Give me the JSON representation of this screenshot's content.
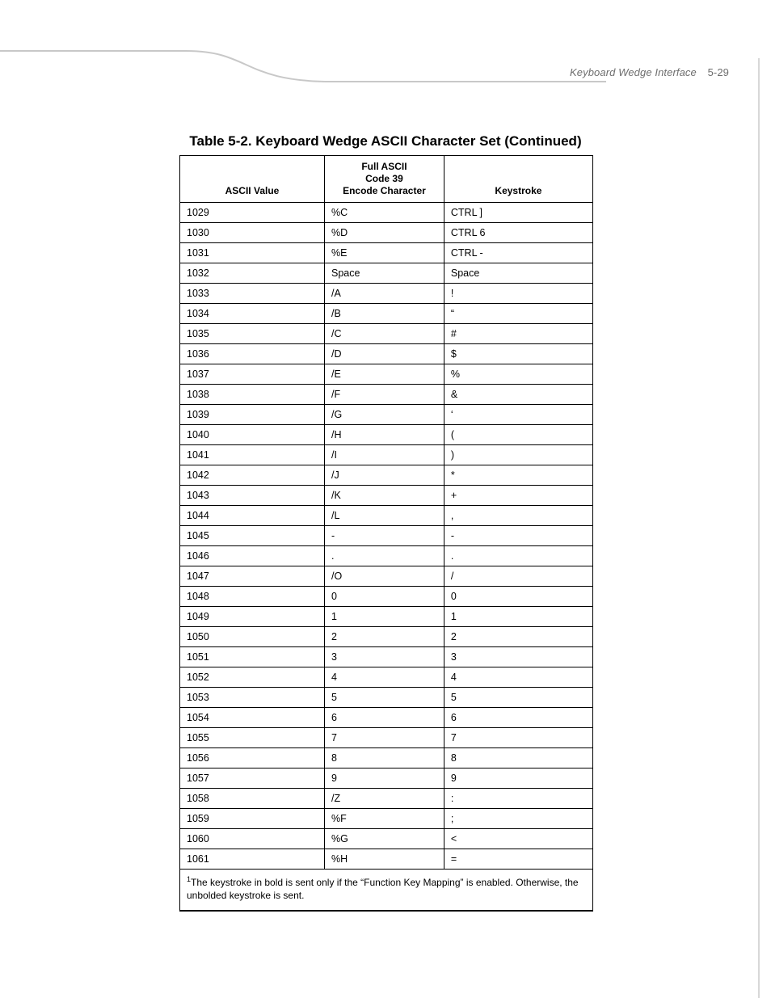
{
  "header": {
    "section": "Keyboard Wedge Interface",
    "page_number": "5-29"
  },
  "caption": "Table 5-2. Keyboard Wedge ASCII Character Set (Continued)",
  "table": {
    "columns": [
      "ASCII Value",
      "Full ASCII\nCode 39\nEncode Character",
      "Keystroke"
    ],
    "rows": [
      [
        "1029",
        "%C",
        "CTRL ]"
      ],
      [
        "1030",
        "%D",
        "CTRL 6"
      ],
      [
        "1031",
        "%E",
        "CTRL -"
      ],
      [
        "1032",
        "Space",
        "Space"
      ],
      [
        "1033",
        "/A",
        "!"
      ],
      [
        "1034",
        "/B",
        "“"
      ],
      [
        "1035",
        "/C",
        "#"
      ],
      [
        "1036",
        "/D",
        "$"
      ],
      [
        "1037",
        "/E",
        "%"
      ],
      [
        "1038",
        "/F",
        "&"
      ],
      [
        "1039",
        "/G",
        "‘"
      ],
      [
        "1040",
        "/H",
        "("
      ],
      [
        "1041",
        "/I",
        ")"
      ],
      [
        "1042",
        "/J",
        "*"
      ],
      [
        "1043",
        "/K",
        "+"
      ],
      [
        "1044",
        "/L",
        ","
      ],
      [
        "1045",
        "-",
        "-"
      ],
      [
        "1046",
        ".",
        "."
      ],
      [
        "1047",
        "/O",
        "/"
      ],
      [
        "1048",
        "0",
        "0"
      ],
      [
        "1049",
        "1",
        "1"
      ],
      [
        "1050",
        "2",
        "2"
      ],
      [
        "1051",
        "3",
        "3"
      ],
      [
        "1052",
        "4",
        "4"
      ],
      [
        "1053",
        "5",
        "5"
      ],
      [
        "1054",
        "6",
        "6"
      ],
      [
        "1055",
        "7",
        "7"
      ],
      [
        "1056",
        "8",
        "8"
      ],
      [
        "1057",
        "9",
        "9"
      ],
      [
        "1058",
        "/Z",
        ":"
      ],
      [
        "1059",
        "%F",
        ";"
      ],
      [
        "1060",
        "%G",
        "<"
      ],
      [
        "1061",
        "%H",
        "="
      ]
    ],
    "footnote_sup": "1",
    "footnote": "The keystroke in bold is sent only if the “Function Key Mapping” is enabled. Otherwise, the unbolded keystroke is sent."
  },
  "style": {
    "page_bg": "#ffffff",
    "rule_color": "#c8c8c8",
    "right_rule_color": "#d8d8d8",
    "text_color": "#000000",
    "header_color": "#6e6e6e",
    "caption_fontsize": 17,
    "header_fontsize": 12,
    "body_fontsize": 12.5,
    "col_widths_pct": [
      35,
      29,
      36
    ]
  }
}
